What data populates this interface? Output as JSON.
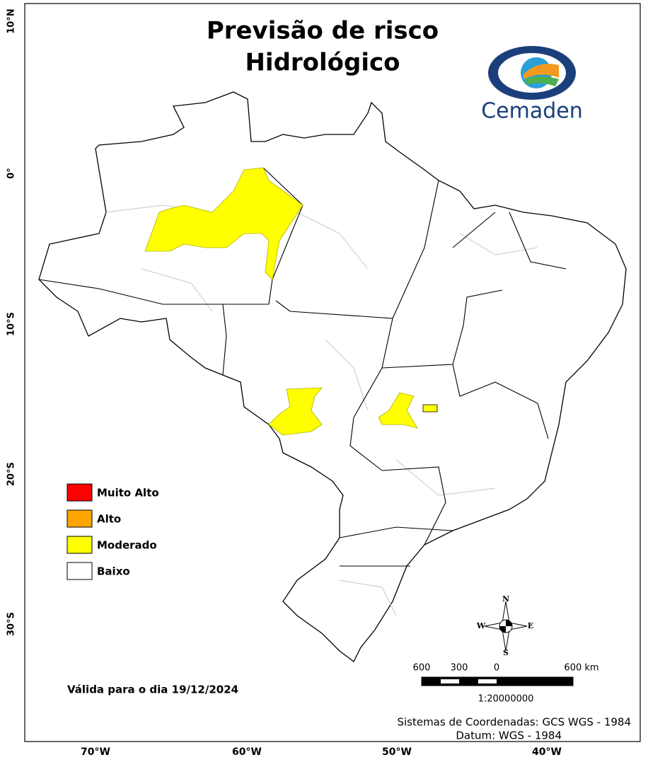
{
  "header": {
    "title_lines": [
      "Previsão de risco",
      "Hidrológico"
    ],
    "logo_text": "Cemaden"
  },
  "legend": {
    "items": [
      {
        "label": "Muito Alto",
        "color": "#ff0000"
      },
      {
        "label": "Alto",
        "color": "#ffa500"
      },
      {
        "label": "Moderado",
        "color": "#ffff00"
      },
      {
        "label": "Baixo",
        "color": "#ffffff"
      }
    ]
  },
  "valid_date": "Válida para o dia 19/12/2024",
  "latitude_labels": [
    "10°N",
    "0°",
    "10°S",
    "20°S",
    "30°S"
  ],
  "longitude_labels": [
    "70°W",
    "60°W",
    "50°W",
    "40°W"
  ],
  "compass": {
    "n": "N",
    "s": "S",
    "e": "E",
    "w": "W"
  },
  "scale_bar": {
    "labels": [
      "600",
      "300",
      "0",
      "600 km"
    ],
    "ratio": "1:20000000"
  },
  "footer": {
    "coordinate_system": "Sistemas de Coordenadas: GCS WGS - 1984",
    "datum": "Datum: WGS - 1984"
  }
}
